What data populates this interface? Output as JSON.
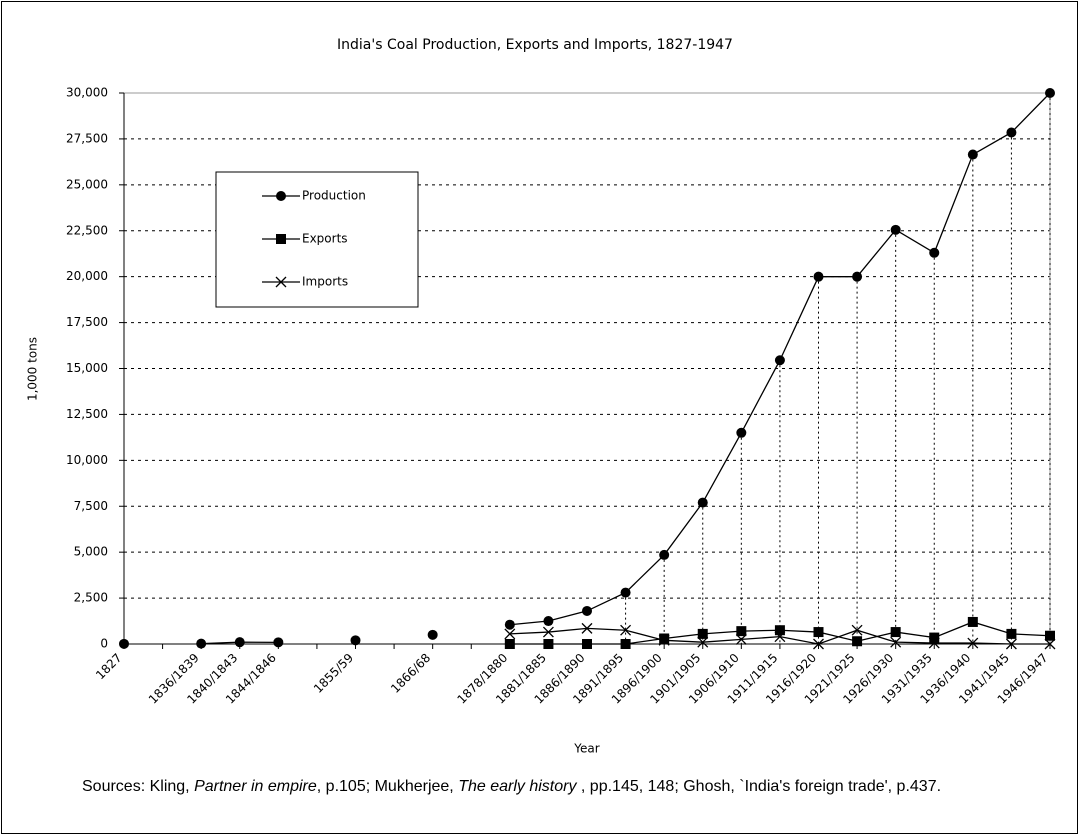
{
  "chart_data": {
    "type": "line",
    "title": "India's Coal Production, Exports and Imports, 1827-1947",
    "xlabel": "Year",
    "ylabel": "1,000 tons",
    "categories": [
      "1827",
      null,
      "1836/1839",
      "1840/1843",
      "1844/1846",
      null,
      "1855/59",
      null,
      "1866/68",
      null,
      "1878/1880",
      "1881/1885",
      "1886/1890",
      "1891/1895",
      "1896/1900",
      "1901/1905",
      "1906/1910",
      "1911/1915",
      "1916/1920",
      "1921/1925",
      "1926/1930",
      "1931/1935",
      "1936/1940",
      "1941/1945",
      "1946/1947"
    ],
    "series": [
      {
        "name": "Production",
        "color": "#000000",
        "marker": "circle",
        "values": [
          10,
          null,
          20,
          100,
          90,
          null,
          200,
          null,
          500,
          null,
          1050,
          1250,
          1800,
          2800,
          4850,
          7700,
          11500,
          15450,
          20000,
          20000,
          22550,
          21300,
          26650,
          27850,
          30000
        ]
      },
      {
        "name": "Exports",
        "color": "#000000",
        "marker": "square",
        "values": [
          null,
          null,
          null,
          null,
          null,
          null,
          null,
          null,
          null,
          null,
          0,
          0,
          0,
          0,
          300,
          550,
          700,
          750,
          650,
          150,
          650,
          350,
          1200,
          550,
          450
        ]
      },
      {
        "name": "Imports",
        "color": "#000000",
        "marker": "x",
        "values": [
          null,
          null,
          null,
          null,
          null,
          null,
          null,
          null,
          null,
          null,
          550,
          650,
          850,
          750,
          200,
          100,
          250,
          400,
          0,
          750,
          100,
          50,
          50,
          0,
          0
        ]
      }
    ],
    "ylim": [
      0,
      30000
    ],
    "yticks": [
      0,
      {
        "value": 2500,
        "label": "2,500"
      },
      {
        "value": 5000,
        "label": "5,000"
      },
      {
        "value": 7500,
        "label": "7,500"
      },
      {
        "value": 10000,
        "label": "10,000"
      },
      {
        "value": 12500,
        "label": "12,500"
      },
      {
        "value": 15000,
        "label": "15,000"
      },
      {
        "value": 17500,
        "label": "17,500"
      },
      {
        "value": 20000,
        "label": "20,000"
      },
      {
        "value": 22500,
        "label": "22,500"
      },
      {
        "value": 25000,
        "label": "25,000"
      },
      {
        "value": 27500,
        "label": "27,500"
      },
      {
        "value": 30000,
        "label": "30,000"
      }
    ],
    "grid": true,
    "legend": "upper left",
    "sources": [
      "Sources: Kling, ",
      "Partner in empire",
      ", p.105; Mukherjee, ",
      "The early history",
      " , pp.145, 148; Ghosh, `India's foreign trade', p.437."
    ]
  }
}
